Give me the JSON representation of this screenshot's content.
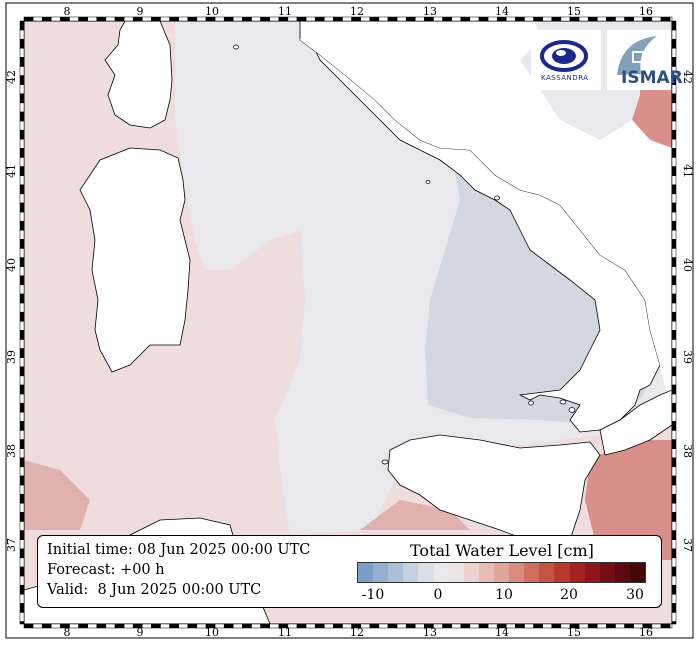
{
  "title": "Total Water Level [cm]",
  "info": {
    "initial_time": "Initial time: 08 Jun 2025 00:00 UTC",
    "forecast": "Forecast: +00 h",
    "valid": "Valid:  8 Jun 2025 00:00 UTC"
  },
  "logos": {
    "left_text": "KASSANDRA",
    "right_text": "ISMAR"
  },
  "axes": {
    "lon_ticks": [
      "8",
      "9",
      "10",
      "11",
      "12",
      "13",
      "14",
      "15",
      "16"
    ],
    "lat_ticks": [
      "42",
      "41",
      "40",
      "39",
      "38",
      "37"
    ]
  },
  "colorbar": {
    "ticks": [
      "-10",
      "0",
      "10",
      "20",
      "30"
    ],
    "colors": [
      "#7a9fc8",
      "#93b0d0",
      "#abc0d8",
      "#c4d0de",
      "#dadfe6",
      "#e9e9ec",
      "#efe4e3",
      "#edd3d0",
      "#e7bcb5",
      "#e0a59b",
      "#d98b7e",
      "#d06e5f",
      "#c65445",
      "#b83a2f",
      "#a4231f",
      "#8e1519",
      "#760d15",
      "#5c0a10",
      "#420709"
    ]
  },
  "colors": {
    "sea_pink": "#efdcdc",
    "sea_grey": "#e9e8ec",
    "sea_blue": "#d3d8e0",
    "sea_red": "#d9908a",
    "land": "#ffffff"
  }
}
